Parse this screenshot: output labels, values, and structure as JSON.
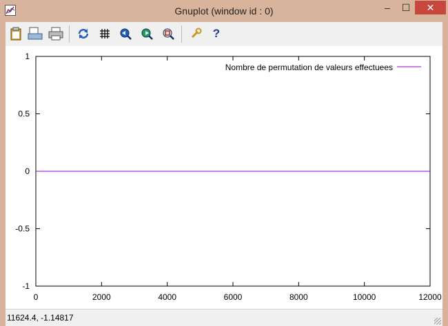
{
  "window": {
    "title": "Gnuplot (window id : 0)",
    "controls": {
      "minimize": "–",
      "maximize": "☐",
      "close": "✕"
    }
  },
  "toolbar": {
    "items": [
      {
        "name": "copy-clipboard-icon",
        "glyph": "📋"
      },
      {
        "name": "print-icon",
        "glyph": "🖨"
      },
      {
        "name": "save-icon",
        "glyph": "🗎"
      },
      {
        "name": "replot-icon",
        "glyph": "⟳"
      },
      {
        "name": "grid-icon",
        "glyph": "#"
      },
      {
        "name": "zoom-previous-icon",
        "glyph": "◀"
      },
      {
        "name": "zoom-next-icon",
        "glyph": "▶"
      },
      {
        "name": "unzoom-icon",
        "glyph": "◙"
      },
      {
        "name": "options-icon",
        "glyph": "🔧"
      },
      {
        "name": "help-icon",
        "glyph": "?"
      }
    ]
  },
  "chart_data": {
    "type": "line",
    "xlim": [
      0,
      12000
    ],
    "ylim": [
      -1,
      1
    ],
    "xticks": [
      "0",
      "2000",
      "4000",
      "6000",
      "8000",
      "10000",
      "12000"
    ],
    "xtick_values": [
      0,
      2000,
      4000,
      6000,
      8000,
      10000,
      12000
    ],
    "yticks": [
      "1",
      "0.5",
      "0",
      "-0.5",
      "-1"
    ],
    "ytick_values": [
      1,
      0.5,
      0,
      -0.5,
      -1
    ],
    "grid": false,
    "legend_position": "top-right",
    "series": [
      {
        "name": "Nombre de permutation de valeurs effectuees",
        "color": "#9400d3",
        "x": [
          0,
          12000
        ],
        "y": [
          0,
          0
        ]
      }
    ]
  },
  "status": {
    "coordinates": "11624.4, -1.14817"
  }
}
